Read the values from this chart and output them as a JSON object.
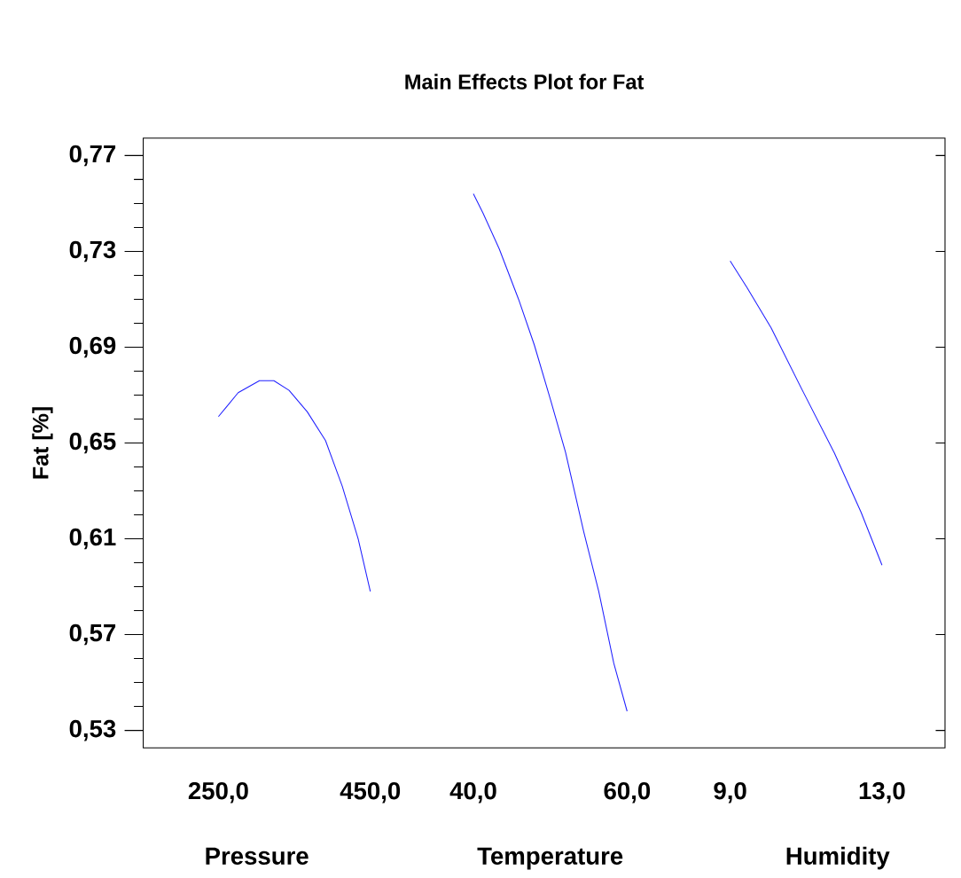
{
  "chart_data": [
    {
      "type": "line",
      "ylabel": "Fat [%]",
      "xlabel": "Pressure",
      "x": [
        250,
        276,
        304,
        323,
        343,
        367,
        391,
        413,
        434,
        450
      ],
      "series": [
        {
          "color": "#2020ff",
          "values": [
            0.661,
            0.671,
            0.676,
            0.676,
            0.672,
            0.663,
            0.651,
            0.632,
            0.61,
            0.588
          ]
        }
      ],
      "xlim": [
        151,
        450
      ],
      "xticks": [
        {
          "value": 250,
          "label": "250,0"
        },
        {
          "value": 450,
          "label": "450,0"
        }
      ],
      "ylim": [
        0.5227,
        0.7773
      ],
      "yticks": [
        {
          "value": 0.53,
          "label": "0,53"
        },
        {
          "value": 0.57,
          "label": "0,57"
        },
        {
          "value": 0.61,
          "label": "0,61"
        },
        {
          "value": 0.65,
          "label": "0,65"
        },
        {
          "value": 0.69,
          "label": "0,69"
        },
        {
          "value": 0.73,
          "label": "0,73"
        },
        {
          "value": 0.77,
          "label": "0,77"
        }
      ]
    },
    {
      "type": "line",
      "title": "Main Effects Plot for Fat",
      "xlabel": "Temperature",
      "tick_labels": "x",
      "x": [
        40,
        41.25,
        43.37,
        45.88,
        47.92,
        50.04,
        52,
        54.35,
        56.31,
        58.27,
        60
      ],
      "series": [
        {
          "color": "#2020ff",
          "values": [
            0.754,
            0.746,
            0.731,
            0.71,
            0.691,
            0.668,
            0.646,
            0.613,
            0.588,
            0.558,
            0.538
          ]
        }
      ],
      "xlim": [
        40,
        60
      ],
      "xticks": [
        {
          "value": 40,
          "label": "40,0"
        },
        {
          "value": 60,
          "label": "60,0"
        }
      ],
      "ylim": [
        0.5227,
        0.7773
      ]
    },
    {
      "type": "line",
      "xlabel": "Humidity",
      "tick_labels": "x",
      "x": [
        9,
        9.44,
        10.08,
        10.87,
        11.74,
        12.45,
        13
      ],
      "series": [
        {
          "color": "#2020ff",
          "values": [
            0.726,
            0.715,
            0.698,
            0.673,
            0.646,
            0.621,
            0.599
          ]
        }
      ],
      "xlim": [
        9,
        14.66
      ],
      "xticks": [
        {
          "value": 9,
          "label": "9,0"
        },
        {
          "value": 13,
          "label": "13,0"
        }
      ],
      "ylim": [
        0.5227,
        0.7773
      ],
      "yticks": [
        {
          "value": 0.53,
          "label": null
        },
        {
          "value": 0.57,
          "label": null
        },
        {
          "value": 0.61,
          "label": null
        },
        {
          "value": 0.65,
          "label": null
        },
        {
          "value": 0.69,
          "label": null
        },
        {
          "value": 0.73,
          "label": null
        },
        {
          "value": 0.77,
          "label": null
        }
      ]
    }
  ]
}
